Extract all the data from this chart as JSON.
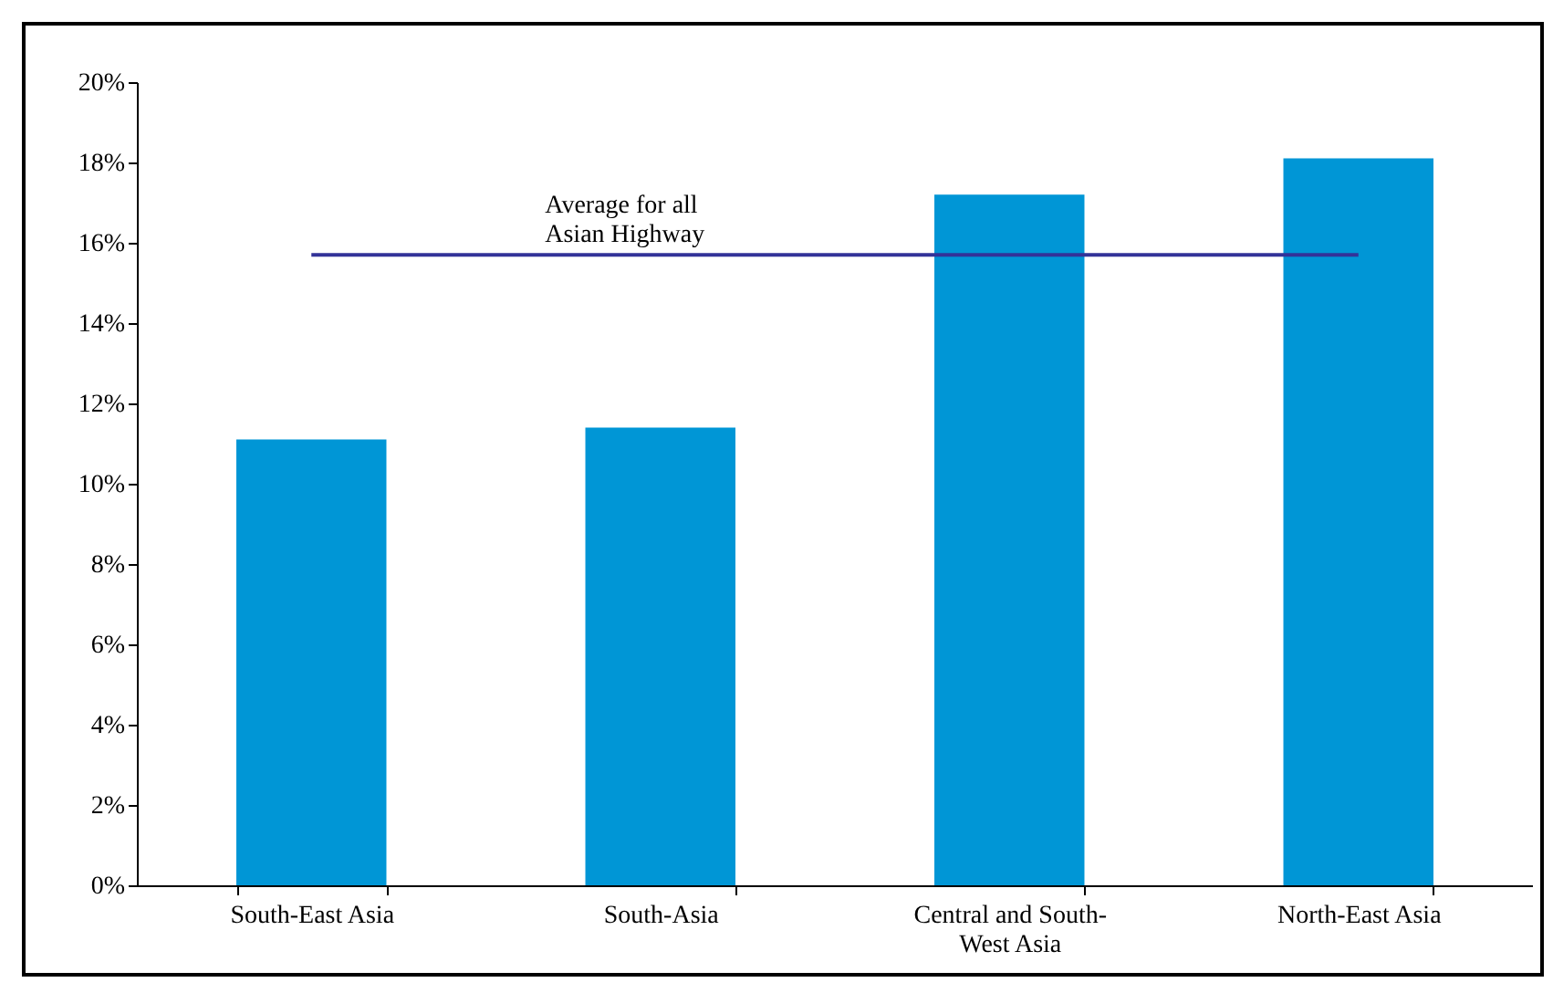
{
  "chart_data": {
    "type": "bar",
    "categories": [
      "South-East Asia",
      "South-Asia",
      "Central and South-West Asia",
      "North-East Asia"
    ],
    "values": [
      11.1,
      11.4,
      17.2,
      18.1
    ],
    "color": "#0096d6",
    "ylim": [
      0,
      20
    ],
    "yticks": [
      {
        "value": 0,
        "label": "0%"
      },
      {
        "value": 2,
        "label": "2%"
      },
      {
        "value": 4,
        "label": "4%"
      },
      {
        "value": 6,
        "label": "6%"
      },
      {
        "value": 8,
        "label": "8%"
      },
      {
        "value": 10,
        "label": "10%"
      },
      {
        "value": 12,
        "label": "12%"
      },
      {
        "value": 14,
        "label": "14%"
      },
      {
        "value": 16,
        "label": "16%"
      },
      {
        "value": 18,
        "label": "18%"
      },
      {
        "value": 20,
        "label": "20%"
      }
    ],
    "ref_lines": [
      {
        "axis": "y",
        "value": 15.7,
        "label": "Average for all\nAsian Highway",
        "color": "#333399"
      }
    ],
    "grid": false
  }
}
